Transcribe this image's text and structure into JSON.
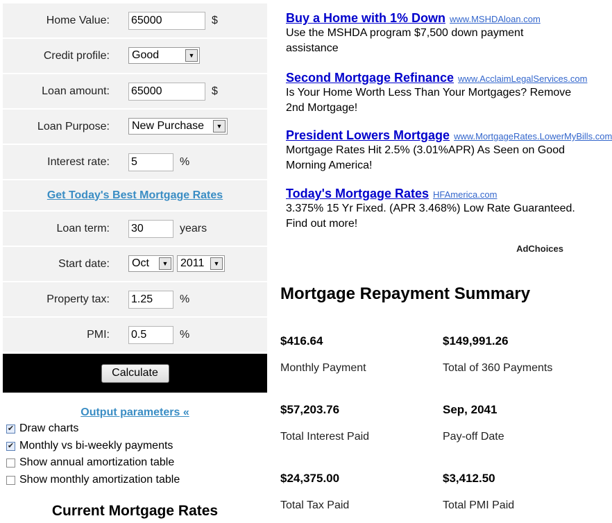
{
  "form": {
    "home_value": {
      "label": "Home Value:",
      "value": "65000",
      "unit": "$"
    },
    "credit_profile": {
      "label": "Credit profile:",
      "value": "Good"
    },
    "loan_amount": {
      "label": "Loan amount:",
      "value": "65000",
      "unit": "$"
    },
    "loan_purpose": {
      "label": "Loan Purpose:",
      "value": "New Purchase"
    },
    "interest_rate": {
      "label": "Interest rate:",
      "value": "5",
      "unit": "%"
    },
    "best_rates_link": "Get Today's Best Mortgage Rates",
    "loan_term": {
      "label": "Loan term:",
      "value": "30",
      "unit": "years"
    },
    "start_date": {
      "label": "Start date:",
      "month": "Oct",
      "year": "2011"
    },
    "property_tax": {
      "label": "Property tax:",
      "value": "1.25",
      "unit": "%"
    },
    "pmi": {
      "label": "PMI:",
      "value": "0.5",
      "unit": "%"
    },
    "calculate_label": "Calculate"
  },
  "output_parameters": {
    "link": "Output parameters «",
    "options": [
      {
        "label": "Draw charts",
        "checked": true
      },
      {
        "label": "Monthly vs bi-weekly payments",
        "checked": true
      },
      {
        "label": "Show annual amortization table",
        "checked": false
      },
      {
        "label": "Show monthly amortization table",
        "checked": false
      }
    ]
  },
  "rates_heading": "Current Mortgage Rates",
  "ads": [
    {
      "title": "Buy a Home with 1% Down",
      "domain": "www.MSHDAloan.com",
      "desc": "Use the MSHDA program $7,500 down payment assistance"
    },
    {
      "title": "Second Mortgage Refinance",
      "domain": "www.AcclaimLegalServices.com",
      "desc": "Is Your Home Worth Less Than Your Mortgages? Remove 2nd Mortgage!"
    },
    {
      "title": "President Lowers Mortgage",
      "domain": "www.MortgageRates.LowerMyBills.com",
      "desc": "Mortgage Rates Hit 2.5% (3.01%APR) As Seen on Good Morning America!"
    },
    {
      "title": "Today's Mortgage Rates",
      "domain": "HFAmerica.com",
      "desc": "3.375% 15 Yr Fixed. (APR 3.468%) Low Rate Guaranteed. Find out more!"
    }
  ],
  "adchoices": "AdChoices",
  "summary": {
    "title": "Mortgage Repayment Summary",
    "items": [
      {
        "value": "$416.64",
        "label": "Monthly Payment"
      },
      {
        "value": "$149,991.26",
        "label": "Total of 360 Payments"
      },
      {
        "value": "$57,203.76",
        "label": "Total Interest Paid"
      },
      {
        "value": "Sep, 2041",
        "label": "Pay-off Date"
      },
      {
        "value": "$24,375.00",
        "label": "Total Tax Paid"
      },
      {
        "value": "$3,412.50",
        "label": "Total PMI Paid"
      }
    ]
  }
}
